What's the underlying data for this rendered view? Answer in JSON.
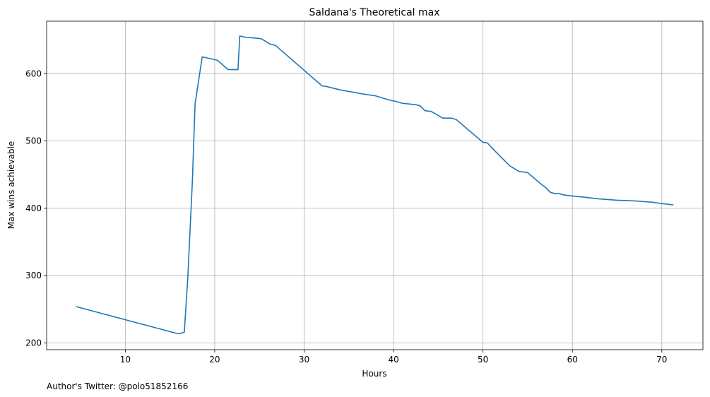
{
  "footnote": "Author's Twitter: @polo51852166",
  "chart_data": {
    "type": "line",
    "title": "Saldana's Theoretical max",
    "xlabel": "Hours",
    "ylabel": "Max wins achievable",
    "xlim": [
      1.2,
      74.6
    ],
    "ylim": [
      190,
      678
    ],
    "xticks": [
      10,
      20,
      30,
      40,
      50,
      60,
      70
    ],
    "yticks": [
      200,
      300,
      400,
      500,
      600
    ],
    "grid": true,
    "color": "#1f77b4",
    "series": [
      {
        "name": "",
        "x": [
          4.5,
          15.8,
          16.1,
          16.6,
          17.0,
          17.5,
          17.8,
          18.2,
          18.6,
          20.3,
          21.5,
          22.6,
          22.8,
          23.5,
          24.5,
          25.2,
          25.7,
          26.2,
          26.8,
          32.0,
          32.5,
          34.0,
          36.5,
          38.0,
          39.5,
          40.2,
          41.0,
          42.5,
          43.0,
          43.5,
          44.2,
          45.0,
          45.5,
          46.5,
          47.0,
          50.0,
          50.5,
          51.5,
          53.0,
          54.0,
          55.0,
          56.5,
          57.0,
          57.5,
          58.0,
          58.5,
          59.0,
          59.5,
          61.0,
          63.0,
          65.0,
          67.0,
          69.0,
          70.0,
          71.3
        ],
        "values": [
          254,
          214,
          214,
          216,
          300,
          440,
          555,
          590,
          625,
          620,
          606,
          606,
          656,
          654,
          653,
          652,
          648,
          644,
          642,
          582,
          581,
          576,
          570,
          567,
          561,
          559,
          556,
          554,
          552,
          545,
          544,
          538,
          534,
          534,
          532,
          498,
          497,
          483,
          463,
          455,
          453,
          436,
          431,
          424,
          422,
          422,
          420,
          419,
          417,
          414,
          412,
          411,
          409,
          407,
          405
        ]
      }
    ]
  }
}
